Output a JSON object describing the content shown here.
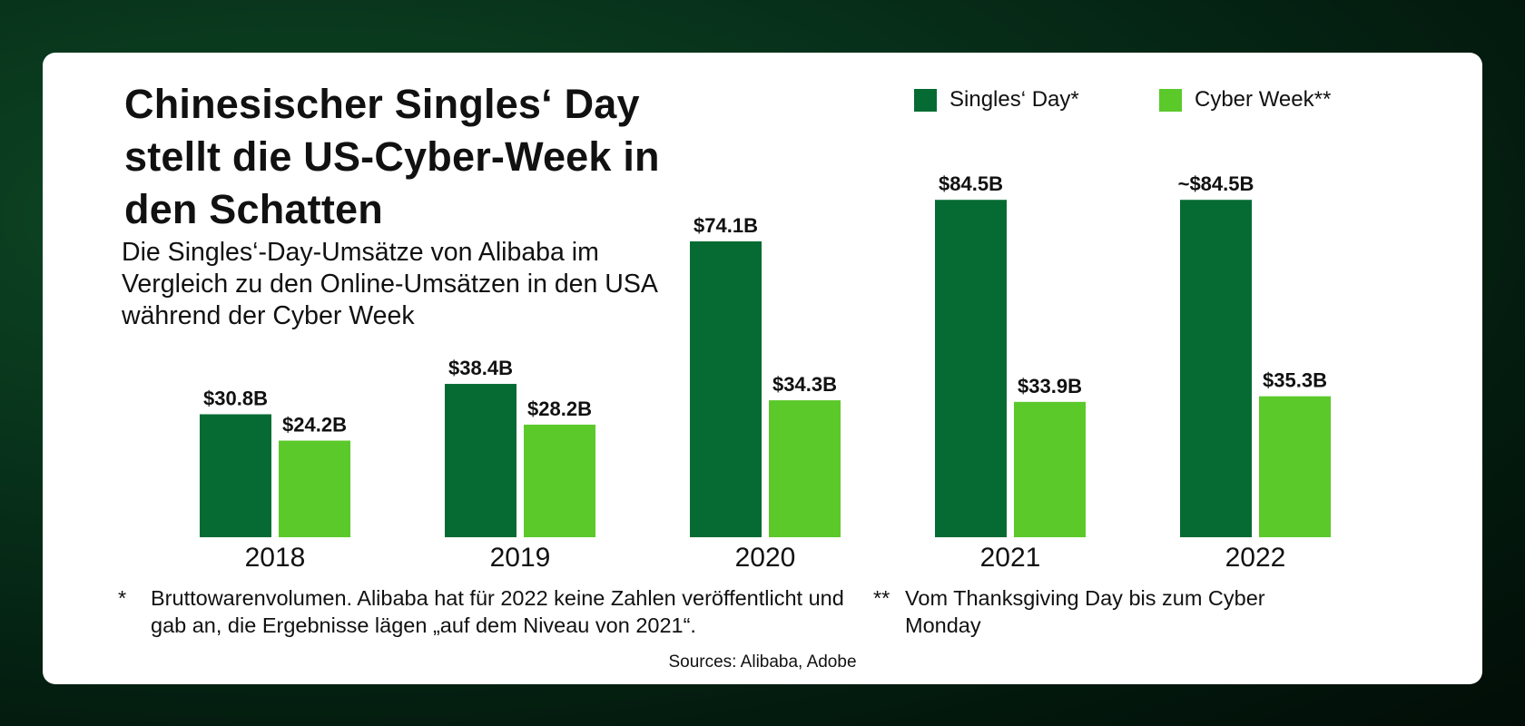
{
  "title": "Chinesischer Singles‘ Day stellt die US-Cyber-Week in den Schatten",
  "subtitle": "Die Singles‘-Day-Umsätze von Alibaba im Vergleich zu den Online-Umsätzen in den USA während der Cyber Week",
  "legend": [
    {
      "label": "Singles‘ Day*",
      "color": "#066b33"
    },
    {
      "label": "Cyber Week**",
      "color": "#5bc92a"
    }
  ],
  "footnotes": [
    {
      "mark": "*",
      "text": "Bruttowarenvolumen. Alibaba hat für 2022 keine Zahlen veröffentlicht und gab an, die Ergebnisse lägen „auf dem Niveau von 2021“."
    },
    {
      "mark": "**",
      "text": "Vom Thanksgiving Day bis zum Cyber Monday"
    }
  ],
  "sources": "Sources: Alibaba, Adobe",
  "chart_data": {
    "type": "bar",
    "categories": [
      "2018",
      "2019",
      "2020",
      "2021",
      "2022"
    ],
    "series": [
      {
        "name": "Singles‘ Day*",
        "color": "#066b33",
        "values": [
          30.8,
          38.4,
          74.1,
          84.5,
          84.5
        ],
        "labels": [
          "$30.8B",
          "$38.4B",
          "$74.1B",
          "$84.5B",
          "~$84.5B"
        ]
      },
      {
        "name": "Cyber Week**",
        "color": "#5bc92a",
        "values": [
          24.2,
          28.2,
          34.3,
          33.9,
          35.3
        ],
        "labels": [
          "$24.2B",
          "$28.2B",
          "$34.3B",
          "$33.9B",
          "$35.3B"
        ]
      }
    ],
    "grid": false,
    "legend_position": "top-right"
  }
}
